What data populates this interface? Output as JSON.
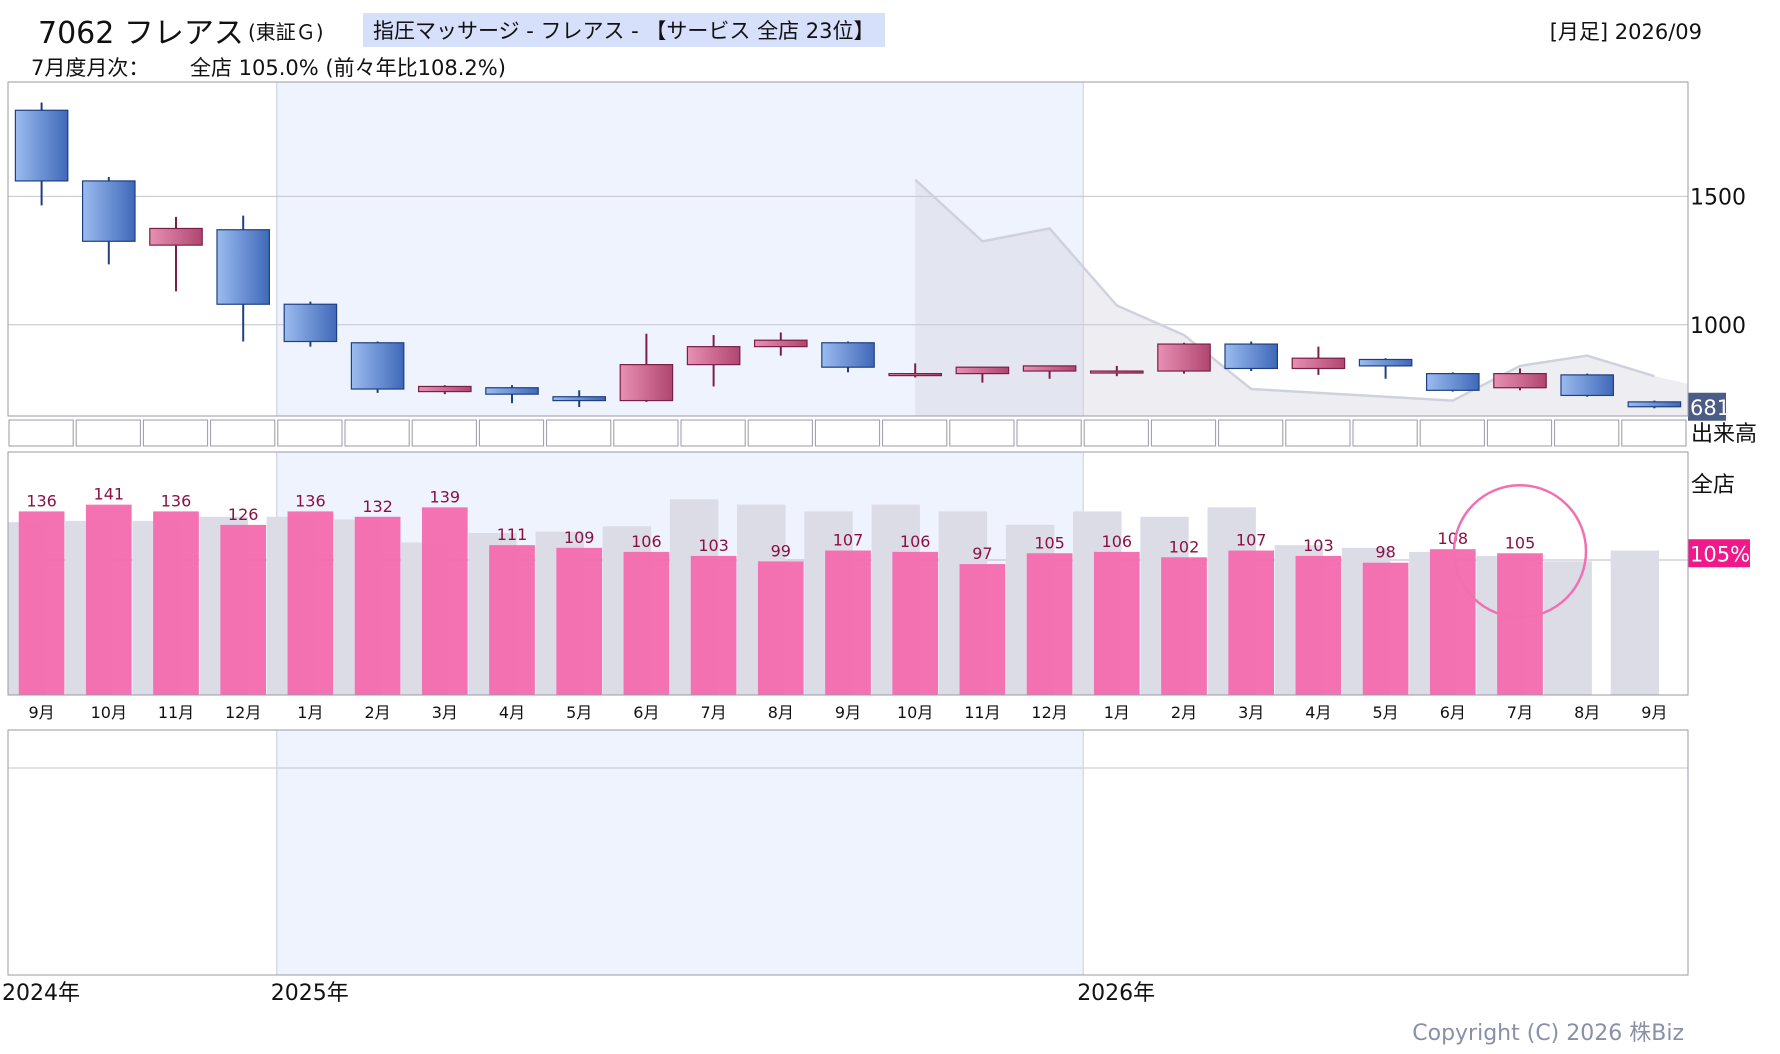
{
  "header": {
    "code_name": "7062 フレアス",
    "market": "(東証Ｇ)",
    "tag": "指圧マッサージ - フレアス - 【サービス 全店 23位】",
    "period": "[月足] 2026/09",
    "monthly_label": "7月度月次：",
    "monthly_value": "全店 105.0% (前々年比108.2%)"
  },
  "copyright": "Copyright (C) 2026 株Biz",
  "colors": {
    "up_candle": "#c64f7c",
    "down_candle": "#4f7fc6",
    "sales_bar": "#f36aae",
    "prev_bar": "#dcdce6",
    "shade": "#eef3fd",
    "price_badge": "#4b5c86",
    "pct_badge": "#f0188a"
  },
  "chart_data": [
    {
      "type": "candlestick",
      "title": "株価",
      "x": [
        "2024-09",
        "2024-10",
        "2024-11",
        "2024-12",
        "2025-01",
        "2025-02",
        "2025-03",
        "2025-04",
        "2025-05",
        "2025-06",
        "2025-07",
        "2025-08",
        "2025-09",
        "2025-10",
        "2025-11",
        "2025-12",
        "2026-01",
        "2026-02",
        "2026-03",
        "2026-04",
        "2026-05",
        "2026-06",
        "2026-07",
        "2026-08",
        "2026-09"
      ],
      "ohlc": [
        [
          1835,
          1865,
          1465,
          1560
        ],
        [
          1560,
          1575,
          1235,
          1325
        ],
        [
          1310,
          1420,
          1130,
          1375
        ],
        [
          1370,
          1425,
          935,
          1080
        ],
        [
          1080,
          1090,
          915,
          935
        ],
        [
          930,
          935,
          735,
          750
        ],
        [
          740,
          765,
          730,
          760
        ],
        [
          755,
          765,
          695,
          730
        ],
        [
          720,
          745,
          680,
          705
        ],
        [
          705,
          965,
          700,
          845
        ],
        [
          845,
          960,
          760,
          915
        ],
        [
          915,
          970,
          880,
          940
        ],
        [
          930,
          935,
          815,
          835
        ],
        [
          810,
          850,
          795,
          810
        ],
        [
          810,
          835,
          775,
          835
        ],
        [
          820,
          840,
          790,
          840
        ],
        [
          820,
          840,
          800,
          820
        ],
        [
          820,
          930,
          810,
          925
        ],
        [
          925,
          935,
          820,
          830
        ],
        [
          830,
          915,
          805,
          870
        ],
        [
          865,
          870,
          790,
          840
        ],
        [
          810,
          815,
          740,
          745
        ],
        [
          755,
          830,
          745,
          810
        ],
        [
          805,
          810,
          720,
          725
        ],
        [
          700,
          705,
          675,
          681
        ]
      ],
      "ref_line": {
        "x": [
          "2025-10",
          "2025-11",
          "2025-12",
          "2026-01",
          "2026-02",
          "2026-03",
          "2026-04",
          "2026-05",
          "2026-06",
          "2026-07",
          "2026-08",
          "2026-09"
        ],
        "y": [
          1565,
          1325,
          1375,
          1075,
          960,
          750,
          735,
          720,
          705,
          840,
          880,
          800
        ]
      },
      "y_ticks": [
        1000,
        1500
      ],
      "ylim": [
        645,
        1945
      ],
      "last_price_label": "681",
      "volume_label": "出来高"
    },
    {
      "type": "bar",
      "title": "全店",
      "categories": [
        "9月",
        "10月",
        "11月",
        "12月",
        "1月",
        "2月",
        "3月",
        "4月",
        "5月",
        "6月",
        "7月",
        "8月",
        "9月",
        "10月",
        "11月",
        "12月",
        "1月",
        "2月",
        "3月",
        "4月",
        "5月",
        "6月",
        "7月",
        "8月",
        "9月"
      ],
      "series": [
        {
          "values": [
            136,
            141,
            136,
            126,
            136,
            132,
            139,
            111,
            109,
            106,
            103,
            99,
            107,
            106,
            97,
            105,
            106,
            102,
            107,
            103,
            98,
            108,
            105,
            null,
            null
          ]
        },
        {
          "values": [
            128,
            129,
            129,
            132,
            132,
            130,
            113,
            120,
            121,
            125,
            145,
            141,
            136,
            141,
            136,
            126,
            136,
            132,
            139,
            111,
            109,
            106,
            103,
            99,
            107
          ]
        }
      ],
      "ref_value": 100,
      "ylim": [
        0,
        180
      ],
      "current_label": "105%",
      "highlight_index": 22
    }
  ],
  "year_labels": [
    {
      "x": "2024-09",
      "label": "2024年"
    },
    {
      "x": "2025-01",
      "label": "2025年"
    },
    {
      "x": "2026-01",
      "label": "2026年"
    }
  ]
}
